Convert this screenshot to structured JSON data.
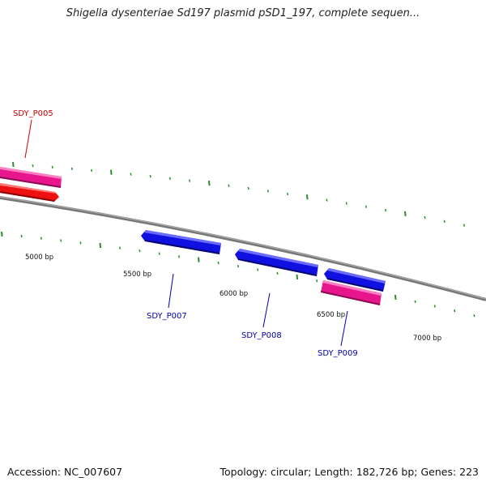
{
  "header": {
    "title": "Shigella dysenteriae Sd197 plasmid pSD1_197, complete sequen..."
  },
  "footer": {
    "accession": "Accession: NC_007607",
    "summary": "Topology: circular; Length: 182,726 bp; Genes: 223"
  },
  "colors": {
    "backbone": "#808080",
    "tick": "#2e8b2e",
    "forward_gene": "#e8168c",
    "forward_gene_alt": "#ee1111",
    "reverse_gene": "#1010e0",
    "label_forward": "#cc0000",
    "label_reverse": "#0000aa"
  },
  "scale_labels": [
    "5000 bp",
    "5500 bp",
    "6000 bp",
    "6500 bp",
    "7000 bp"
  ],
  "genes": [
    {
      "id": "SDY_P005",
      "label": "SDY_P005",
      "strand": "forward",
      "icon": "arrow-right"
    },
    {
      "id": "SDY_P005b",
      "label": "",
      "strand": "forward",
      "icon": "arrow-right"
    },
    {
      "id": "SDY_P007",
      "label": "SDY_P007",
      "strand": "reverse",
      "icon": "arrow-left"
    },
    {
      "id": "SDY_P008",
      "label": "SDY_P008",
      "strand": "reverse",
      "icon": "arrow-left"
    },
    {
      "id": "SDY_P009a",
      "label": "",
      "strand": "reverse",
      "icon": "arrow-left"
    },
    {
      "id": "SDY_P009",
      "label": "SDY_P009",
      "strand": "forward",
      "icon": "arrow-right"
    }
  ]
}
